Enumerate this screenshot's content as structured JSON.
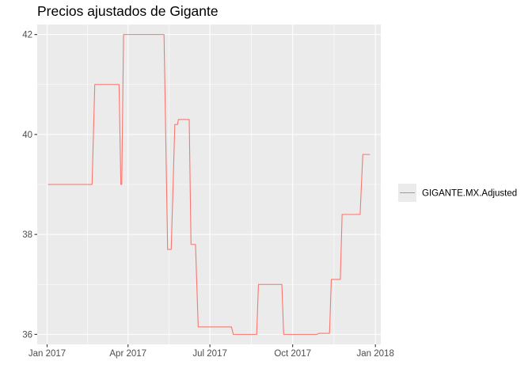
{
  "chart_data": {
    "type": "line",
    "title": "Precios ajustados de Gigante",
    "xlabel": "",
    "ylabel": "",
    "x_ticks": [
      {
        "date": "2017-01-01",
        "label": "Jan 2017"
      },
      {
        "date": "2017-04-01",
        "label": "Apr 2017"
      },
      {
        "date": "2017-07-01",
        "label": "Jul 2017"
      },
      {
        "date": "2017-10-01",
        "label": "Oct 2017"
      },
      {
        "date": "2018-01-01",
        "label": "Jan 2018"
      }
    ],
    "y_ticks": [
      36,
      38,
      40,
      42
    ],
    "xlim": [
      "2016-12-21",
      "2018-01-07"
    ],
    "ylim": [
      35.8,
      42.2
    ],
    "grid": true,
    "legend_position": "right",
    "series": [
      {
        "name": "GIGANTE.MX.Adjusted",
        "color": "#F8766D",
        "points": [
          [
            "2017-01-02",
            39.0
          ],
          [
            "2017-02-20",
            39.0
          ],
          [
            "2017-02-23",
            41.0
          ],
          [
            "2017-03-22",
            41.0
          ],
          [
            "2017-03-24",
            39.0
          ],
          [
            "2017-03-25",
            39.0
          ],
          [
            "2017-03-27",
            42.0
          ],
          [
            "2017-05-11",
            42.0
          ],
          [
            "2017-05-15",
            37.7
          ],
          [
            "2017-05-19",
            37.7
          ],
          [
            "2017-05-23",
            40.2
          ],
          [
            "2017-05-26",
            40.2
          ],
          [
            "2017-05-27",
            40.3
          ],
          [
            "2017-06-08",
            40.3
          ],
          [
            "2017-06-10",
            37.8
          ],
          [
            "2017-06-15",
            37.8
          ],
          [
            "2017-06-18",
            36.15
          ],
          [
            "2017-07-25",
            36.15
          ],
          [
            "2017-07-27",
            36.0
          ],
          [
            "2017-08-22",
            36.0
          ],
          [
            "2017-08-24",
            37.0
          ],
          [
            "2017-09-19",
            37.0
          ],
          [
            "2017-09-21",
            36.0
          ],
          [
            "2017-10-28",
            36.0
          ],
          [
            "2017-10-30",
            36.02
          ],
          [
            "2017-11-11",
            36.02
          ],
          [
            "2017-11-13",
            37.1
          ],
          [
            "2017-11-23",
            37.1
          ],
          [
            "2017-11-25",
            38.4
          ],
          [
            "2017-12-15",
            38.4
          ],
          [
            "2017-12-18",
            39.6
          ],
          [
            "2017-12-26",
            39.6
          ]
        ]
      }
    ]
  }
}
